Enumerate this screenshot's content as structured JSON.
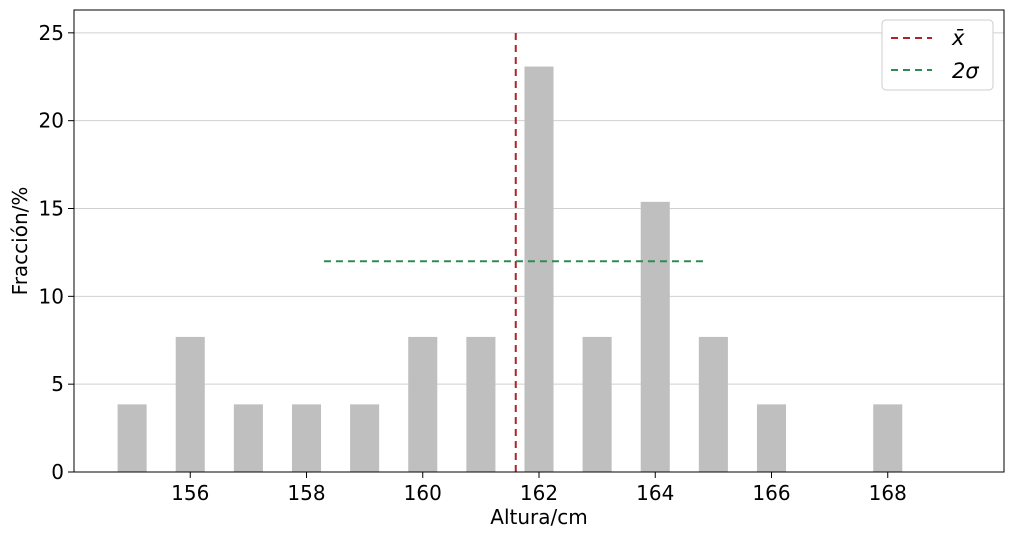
{
  "chart_data": {
    "type": "bar",
    "xlabel": "Altura/cm",
    "ylabel": "Fracción/%",
    "xlim": [
      154.0,
      170.0
    ],
    "ylim": [
      0,
      26.3
    ],
    "xticks": [
      156,
      158,
      160,
      162,
      164,
      166,
      168
    ],
    "yticks": [
      0,
      5,
      10,
      15,
      20,
      25
    ],
    "grid": "horizontal",
    "legend_position": "top-right",
    "x": [
      155,
      156,
      157,
      158,
      159,
      160,
      161,
      162,
      163,
      164,
      165,
      166,
      168
    ],
    "values": [
      3.85,
      7.69,
      3.85,
      3.85,
      3.85,
      7.69,
      7.69,
      23.08,
      7.69,
      15.38,
      7.69,
      3.85,
      3.85
    ],
    "bar_color": "#bfbfbf",
    "mean": {
      "label": "x̄",
      "x": 161.6,
      "y_range": [
        0,
        25
      ],
      "color": "#b22222"
    },
    "two_sigma": {
      "label": "2σ",
      "x_range": [
        158.3,
        164.85
      ],
      "y": 12,
      "color": "#2e8b57"
    }
  }
}
